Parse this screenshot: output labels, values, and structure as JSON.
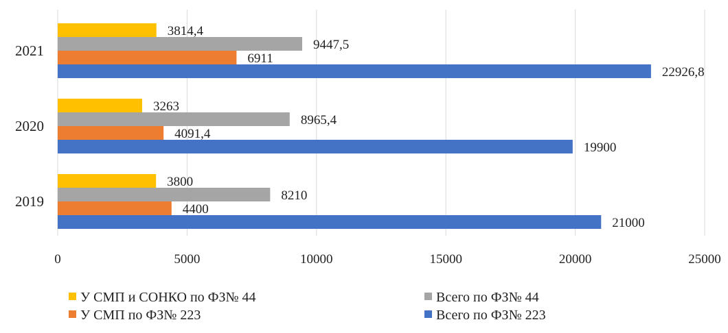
{
  "chart_data": {
    "type": "bar",
    "orientation": "horizontal",
    "categories": [
      "2019",
      "2020",
      "2021"
    ],
    "series": [
      {
        "name": "Всего по ФЗ№ 223",
        "color": "#4472C4",
        "values": [
          21000,
          19900,
          22926.8
        ],
        "labels": [
          "21000",
          "19900",
          "22926,8"
        ]
      },
      {
        "name": "У СМП по ФЗ№ 223",
        "color": "#ED7D31",
        "values": [
          4400,
          4091.4,
          6911
        ],
        "labels": [
          "4400",
          "4091,4",
          "6911"
        ]
      },
      {
        "name": "Всего по ФЗ№ 44",
        "color": "#A5A5A5",
        "values": [
          8210,
          8965.4,
          9447.5
        ],
        "labels": [
          "8210",
          "8965,4",
          "9447,5"
        ]
      },
      {
        "name": "У СМП и СОНКО по ФЗ№ 44",
        "color": "#FFC000",
        "values": [
          3800,
          3263,
          3814.4
        ],
        "labels": [
          "3800",
          "3263",
          "3814,4"
        ]
      }
    ],
    "xlim": [
      0,
      25000
    ],
    "xticks": [
      0,
      5000,
      10000,
      15000,
      20000,
      25000
    ],
    "grid": true,
    "legend": "bottom",
    "legend_order": [
      3,
      2,
      1,
      0
    ]
  }
}
